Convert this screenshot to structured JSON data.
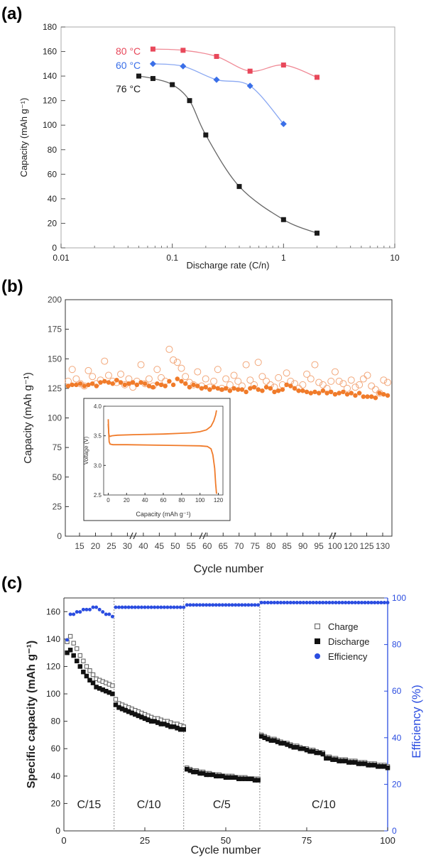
{
  "chart_data": [
    {
      "panel": "(a)",
      "type": "scatter",
      "xscale": "log",
      "xlabel": "Discharge rate (C/n)",
      "ylabel": "Capacity (mAh g⁻¹)",
      "xlim": [
        0.01,
        10
      ],
      "ylim": [
        0,
        180
      ],
      "xticks": [
        "0.01",
        "0.1",
        "1",
        "10"
      ],
      "yticks": [
        "0",
        "20",
        "40",
        "60",
        "80",
        "100",
        "120",
        "140",
        "160",
        "180"
      ],
      "series": [
        {
          "name": "80 °C",
          "color": "#e8485a",
          "marker": "square",
          "x": [
            0.067,
            0.125,
            0.25,
            0.5,
            1,
            2
          ],
          "y": [
            162,
            161,
            156,
            144,
            149,
            139
          ]
        },
        {
          "name": "60 °C",
          "color": "#3a6fe8",
          "marker": "diamond",
          "x": [
            0.067,
            0.125,
            0.25,
            0.5,
            1
          ],
          "y": [
            150,
            148,
            137,
            132,
            101
          ]
        },
        {
          "name": "76 °C",
          "color": "#1a1a1a",
          "marker": "square",
          "x": [
            0.05,
            0.067,
            0.1,
            0.143,
            0.2,
            0.4,
            1,
            2
          ],
          "y": [
            140,
            138,
            133,
            120,
            92,
            50,
            23,
            12
          ]
        }
      ]
    },
    {
      "panel": "(b)",
      "type": "scatter",
      "ylabel": "Capacity (mAh g⁻¹)",
      "xlabel": "Cycle number",
      "ylim": [
        0,
        200
      ],
      "yticks": [
        "0",
        "25",
        "50",
        "75",
        "100",
        "125",
        "150",
        "175",
        "200"
      ],
      "xticks": [
        "15",
        "20",
        "25",
        "30",
        "40",
        "45",
        "50",
        "55",
        "60",
        "65",
        "70",
        "75",
        "80",
        "85",
        "90",
        "95",
        "100",
        "120",
        "125",
        "130"
      ],
      "series": [
        {
          "name": "",
          "color": "#f2a77a",
          "marker": "open-circle",
          "y": [
            131,
            141,
            133,
            129,
            127,
            140,
            135,
            129,
            132,
            148,
            136,
            131,
            130,
            137,
            128,
            133,
            126,
            131,
            145,
            129,
            133,
            127,
            141,
            134,
            131,
            158,
            149,
            147,
            142,
            135,
            130,
            128,
            139,
            127,
            133,
            126,
            131,
            141,
            125,
            133,
            128,
            136,
            131,
            127,
            145,
            132,
            128,
            147,
            135,
            131,
            128,
            126,
            134,
            128,
            138,
            131,
            129,
            125,
            128,
            137,
            133,
            145,
            130,
            128,
            125,
            131,
            139,
            131,
            129,
            125,
            132,
            126,
            128,
            133,
            136,
            127,
            124,
            121,
            132,
            130
          ]
        },
        {
          "name": "",
          "color": "#f07b2a",
          "marker": "filled-circle",
          "y": [
            127,
            128,
            128,
            129,
            127,
            128,
            129,
            127,
            130,
            131,
            130,
            129,
            132,
            130,
            128,
            129,
            130,
            128,
            130,
            129,
            127,
            126,
            129,
            128,
            127,
            131,
            128,
            133,
            131,
            129,
            126,
            128,
            127,
            125,
            126,
            124,
            126,
            125,
            124,
            125,
            123,
            125,
            124,
            124,
            122,
            125,
            126,
            124,
            123,
            126,
            125,
            122,
            123,
            124,
            128,
            127,
            125,
            123,
            123,
            122,
            121,
            122,
            121,
            123,
            121,
            122,
            120,
            121,
            122,
            120,
            121,
            119,
            121,
            118,
            118,
            118,
            117,
            121,
            120,
            119
          ]
        }
      ],
      "inset": {
        "type": "line",
        "xlabel": "Capacity (mAh g⁻¹)",
        "ylabel": "Voltage (V)",
        "xlim": [
          -5,
          125
        ],
        "ylim": [
          2.5,
          4.0
        ],
        "xticks": [
          "0",
          "20",
          "40",
          "60",
          "80",
          "100",
          "120"
        ],
        "yticks": [
          "2.5",
          "3.0",
          "3.5",
          "4.0"
        ],
        "color": "#f07b2a",
        "charge_x": [
          0,
          0.5,
          1,
          2,
          4,
          10,
          30,
          60,
          90,
          100,
          107,
          112,
          115,
          117,
          118
        ],
        "charge_y": [
          3.7,
          3.55,
          3.5,
          3.49,
          3.5,
          3.51,
          3.52,
          3.53,
          3.55,
          3.57,
          3.6,
          3.66,
          3.75,
          3.85,
          3.93
        ],
        "discharge_x": [
          0,
          0.5,
          1,
          2,
          5,
          20,
          60,
          100,
          108,
          112,
          114,
          116,
          117,
          118
        ],
        "discharge_y": [
          3.78,
          3.55,
          3.4,
          3.36,
          3.35,
          3.35,
          3.34,
          3.33,
          3.32,
          3.28,
          3.18,
          2.95,
          2.7,
          2.52
        ]
      }
    },
    {
      "panel": "(c)",
      "type": "scatter",
      "xlabel": "Cycle number",
      "ylabel": "Specific capacity (mAh g⁻¹)",
      "ylabel_right": "Efficiency (%)",
      "xlim": [
        0,
        100
      ],
      "ylim": [
        0,
        170
      ],
      "ylim_right": [
        0,
        100
      ],
      "xticks": [
        "0",
        "25",
        "50",
        "75",
        "100"
      ],
      "yticks": [
        "0",
        "20",
        "40",
        "60",
        "80",
        "100",
        "120",
        "140",
        "160"
      ],
      "yticks_right": [
        "0",
        "20",
        "40",
        "60",
        "80",
        "100"
      ],
      "rate_labels": [
        "C/15",
        "C/10",
        "C/5",
        "C/10"
      ],
      "rate_boundaries": [
        15.5,
        37,
        60.5
      ],
      "series": [
        {
          "name": "Charge",
          "color": "#666666",
          "marker": "open-square",
          "y": [
            138,
            142,
            137,
            133,
            128,
            124,
            120,
            117,
            114,
            111,
            110,
            109,
            108,
            107,
            106,
            96,
            93,
            92,
            91,
            90,
            89,
            88,
            87,
            86,
            85,
            84,
            83,
            82,
            82,
            81,
            80,
            80,
            79,
            78,
            78,
            77,
            76,
            46,
            45,
            44,
            44,
            43,
            43,
            42,
            42,
            41,
            41,
            41,
            40,
            40,
            40,
            40,
            39,
            39,
            39,
            39,
            38,
            38,
            38,
            38,
            70,
            69,
            68,
            67,
            67,
            66,
            65,
            64,
            64,
            63,
            62,
            62,
            61,
            60,
            60,
            59,
            59,
            58,
            57,
            57,
            54,
            54,
            53,
            53,
            52,
            52,
            52,
            51,
            51,
            51,
            50,
            50,
            50,
            49,
            49,
            49,
            48,
            48,
            48,
            47
          ]
        },
        {
          "name": "Discharge",
          "color": "#111111",
          "marker": "filled-square",
          "y": [
            130,
            132,
            128,
            124,
            120,
            116,
            113,
            110,
            108,
            105,
            104,
            103,
            102,
            101,
            100,
            92,
            90,
            89,
            88,
            87,
            86,
            85,
            84,
            83,
            82,
            81,
            80,
            80,
            79,
            78,
            78,
            77,
            76,
            76,
            75,
            74,
            74,
            45,
            44,
            43,
            43,
            42,
            42,
            41,
            41,
            41,
            40,
            40,
            40,
            39,
            39,
            39,
            39,
            38,
            38,
            38,
            38,
            38,
            37,
            37,
            69,
            68,
            67,
            66,
            66,
            65,
            64,
            64,
            63,
            62,
            61,
            61,
            60,
            60,
            59,
            58,
            58,
            57,
            57,
            56,
            53,
            53,
            52,
            52,
            51,
            51,
            51,
            50,
            50,
            50,
            49,
            49,
            49,
            48,
            48,
            48,
            47,
            47,
            47,
            46
          ]
        },
        {
          "name": "Efficiency",
          "color": "#2b4de0",
          "marker": "filled-circle",
          "axis": "right",
          "y": [
            82,
            93,
            93,
            94,
            94,
            95,
            95,
            95,
            96,
            96,
            95,
            94,
            93,
            93,
            92,
            96,
            96,
            96,
            96,
            96,
            96,
            96,
            96,
            96,
            96,
            96,
            96,
            96,
            96,
            96,
            96,
            96,
            96,
            96,
            96,
            96,
            96,
            97,
            97,
            97,
            97,
            97,
            97,
            97,
            97,
            97,
            97,
            97,
            97,
            97,
            97,
            97,
            97,
            97,
            97,
            97,
            97,
            97,
            97,
            97,
            98,
            98,
            98,
            98,
            98,
            98,
            98,
            98,
            98,
            98,
            98,
            98,
            98,
            98,
            98,
            98,
            98,
            98,
            98,
            98,
            98,
            98,
            98,
            98,
            98,
            98,
            98,
            98,
            98,
            98,
            98,
            98,
            98,
            98,
            98,
            98,
            98,
            98,
            98,
            98
          ]
        }
      ]
    }
  ]
}
